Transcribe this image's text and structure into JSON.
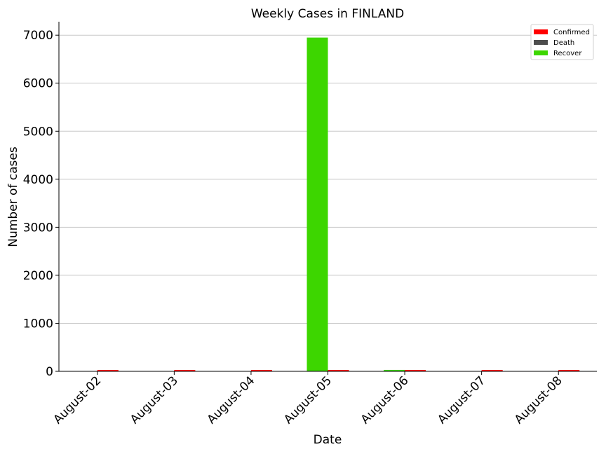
{
  "chart_data": {
    "type": "bar",
    "title": "Weekly Cases in FINLAND",
    "xlabel": "Date",
    "ylabel": "Number of cases",
    "categories": [
      "August-02",
      "August-03",
      "August-04",
      "August-05",
      "August-06",
      "August-07",
      "August-08"
    ],
    "series": [
      {
        "name": "Confirmed",
        "color": "#ff0000",
        "values": [
          3,
          2,
          15,
          14,
          28,
          12,
          10
        ]
      },
      {
        "name": "Death",
        "color": "#4d4d4d",
        "values": [
          0,
          0,
          0,
          0,
          0,
          0,
          0
        ]
      },
      {
        "name": "Recover",
        "color": "#3dd600",
        "values": [
          0,
          0,
          0,
          6950,
          30,
          0,
          0
        ]
      }
    ],
    "ylim": [
      0,
      7280
    ],
    "yticks": [
      0,
      1000,
      2000,
      3000,
      4000,
      5000,
      6000,
      7000
    ],
    "grid": "horizontal",
    "legend_position": "top-right"
  }
}
